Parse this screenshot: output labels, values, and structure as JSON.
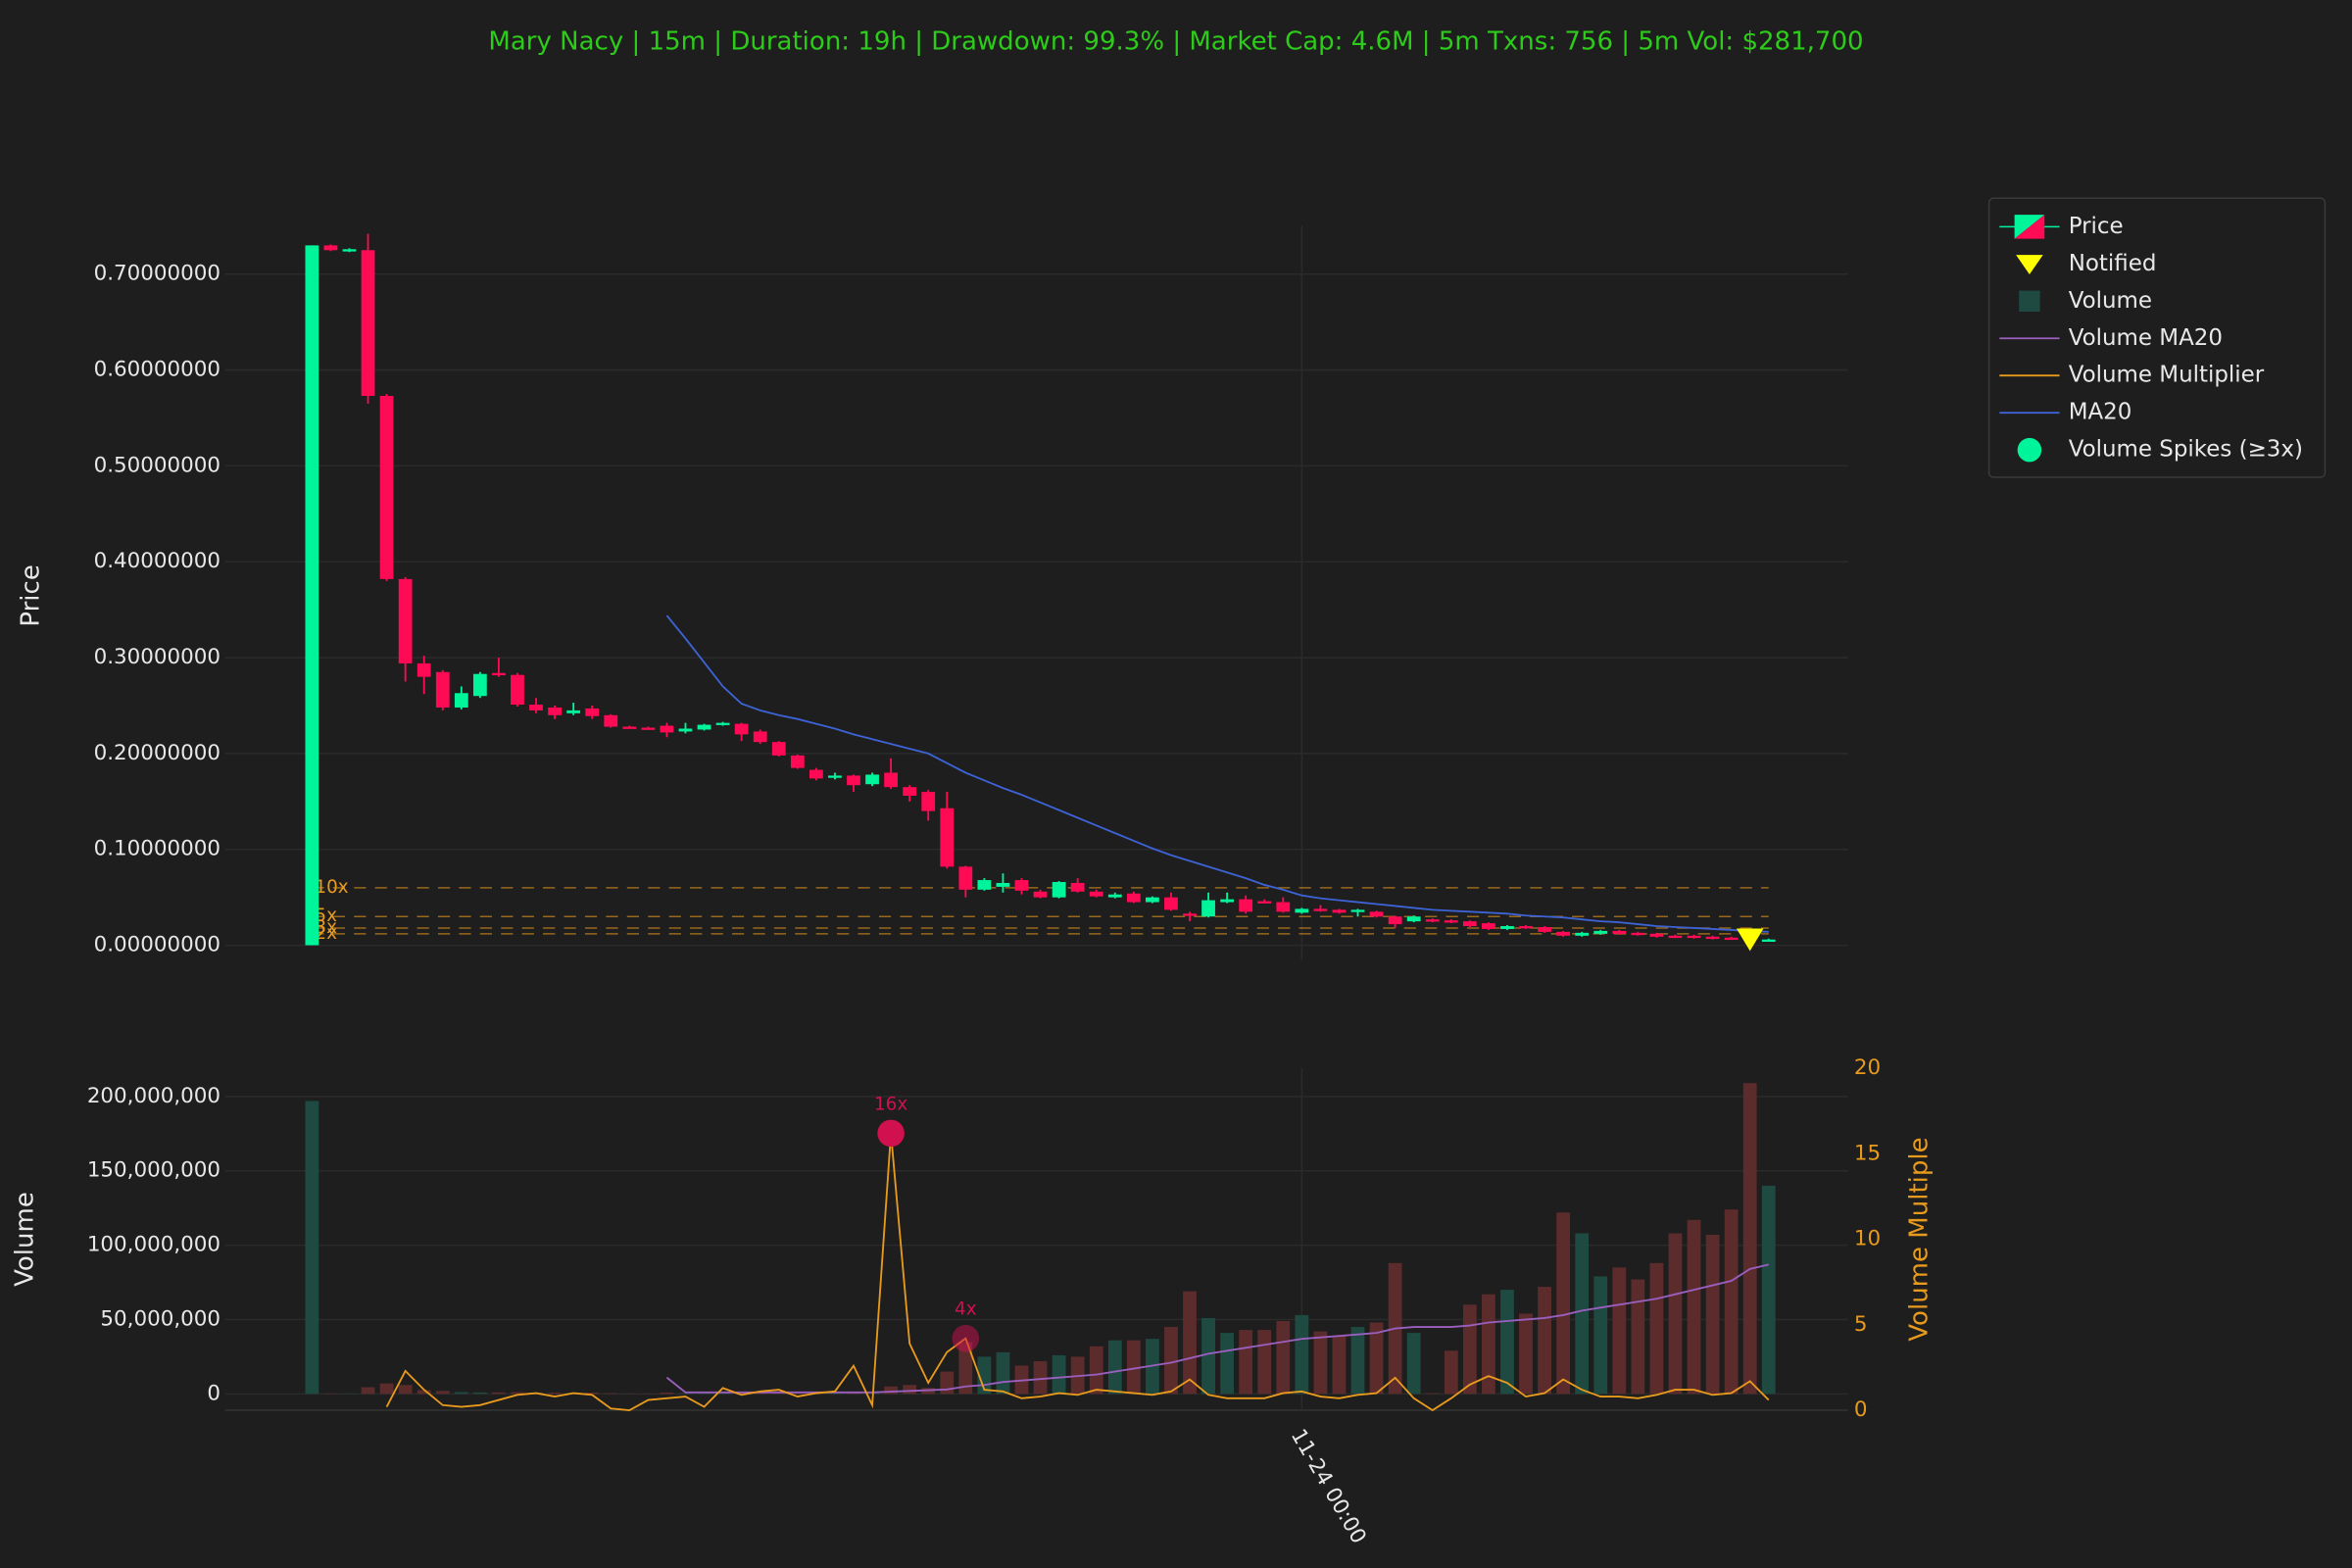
{
  "chart_data": [
    {
      "type": "candlestick",
      "title": "Mary Nacy | 15m | Duration: 19h | Drawdown: 99.3% | Market Cap: 4.6M | 5m Txns: 756 | 5m Vol: $281,700",
      "title_color": "#2ecc1a",
      "ylabel": "Price",
      "ylim": [
        -0.0156,
        0.751
      ],
      "yticks": [
        {
          "value": 0,
          "label": "0.00000000"
        },
        {
          "value": 0.1,
          "label": "0.10000000"
        },
        {
          "value": 0.2,
          "label": "0.20000000"
        },
        {
          "value": 0.3,
          "label": "0.30000000"
        },
        {
          "value": 0.4,
          "label": "0.40000000"
        },
        {
          "value": 0.5,
          "label": "0.50000000"
        },
        {
          "value": 0.6,
          "label": "0.60000000"
        },
        {
          "value": 0.7,
          "label": "0.70000000"
        }
      ],
      "grid": true,
      "series": [
        {
          "name": "Price",
          "type": "candlestick",
          "up_color": "#00f59b",
          "down_color": "#ff0a54",
          "open": [
            0.0001,
            0.73,
            0.724,
            0.725,
            0.573,
            0.382,
            0.294,
            0.285,
            0.248,
            0.26,
            0.284,
            0.282,
            0.251,
            0.248,
            0.242,
            0.247,
            0.24,
            0.228,
            0.227,
            0.229,
            0.223,
            0.225,
            0.23,
            0.231,
            0.223,
            0.212,
            0.198,
            0.183,
            0.175,
            0.177,
            0.168,
            0.18,
            0.165,
            0.16,
            0.143,
            0.082,
            0.058,
            0.061,
            0.068,
            0.056,
            0.05,
            0.065,
            0.056,
            0.05,
            0.054,
            0.045,
            0.05,
            0.033,
            0.03,
            0.045,
            0.048,
            0.046,
            0.045,
            0.034,
            0.038,
            0.037,
            0.035,
            0.035,
            0.03,
            0.025,
            0.027,
            0.026,
            0.025,
            0.023,
            0.017,
            0.02,
            0.019,
            0.014,
            0.01,
            0.012,
            0.015,
            0.013,
            0.012,
            0.01,
            0.01,
            0.009,
            0.008,
            0.008,
            0.005
          ],
          "high": [
            0.73,
            0.731,
            0.727,
            0.742,
            0.575,
            0.384,
            0.302,
            0.287,
            0.27,
            0.285,
            0.3,
            0.284,
            0.258,
            0.25,
            0.253,
            0.25,
            0.241,
            0.229,
            0.228,
            0.232,
            0.232,
            0.231,
            0.233,
            0.232,
            0.225,
            0.213,
            0.199,
            0.185,
            0.18,
            0.178,
            0.18,
            0.195,
            0.167,
            0.162,
            0.16,
            0.083,
            0.07,
            0.075,
            0.07,
            0.058,
            0.067,
            0.07,
            0.058,
            0.055,
            0.056,
            0.051,
            0.055,
            0.035,
            0.055,
            0.055,
            0.052,
            0.048,
            0.05,
            0.039,
            0.042,
            0.038,
            0.038,
            0.036,
            0.031,
            0.031,
            0.028,
            0.027,
            0.026,
            0.024,
            0.021,
            0.021,
            0.02,
            0.015,
            0.014,
            0.016,
            0.016,
            0.014,
            0.013,
            0.011,
            0.011,
            0.01,
            0.009,
            0.009,
            0.007
          ],
          "low": [
            0,
            0.724,
            0.723,
            0.565,
            0.38,
            0.275,
            0.262,
            0.245,
            0.246,
            0.258,
            0.28,
            0.249,
            0.242,
            0.236,
            0.24,
            0.236,
            0.227,
            0.226,
            0.225,
            0.217,
            0.221,
            0.224,
            0.229,
            0.213,
            0.21,
            0.197,
            0.184,
            0.172,
            0.173,
            0.16,
            0.166,
            0.163,
            0.15,
            0.13,
            0.08,
            0.05,
            0.057,
            0.055,
            0.053,
            0.049,
            0.049,
            0.055,
            0.05,
            0.049,
            0.044,
            0.044,
            0.036,
            0.025,
            0.029,
            0.044,
            0.033,
            0.044,
            0.034,
            0.033,
            0.035,
            0.033,
            0.03,
            0.029,
            0.018,
            0.024,
            0.024,
            0.023,
            0.019,
            0.016,
            0.016,
            0.017,
            0.013,
            0.009,
            0.009,
            0.011,
            0.011,
            0.01,
            0.008,
            0.008,
            0.007,
            0.006,
            0.006,
            0.005,
            0.004
          ],
          "close": [
            0.73,
            0.725,
            0.726,
            0.573,
            0.382,
            0.294,
            0.28,
            0.248,
            0.263,
            0.283,
            0.282,
            0.251,
            0.245,
            0.24,
            0.245,
            0.239,
            0.228,
            0.227,
            0.226,
            0.222,
            0.226,
            0.23,
            0.232,
            0.22,
            0.212,
            0.198,
            0.185,
            0.174,
            0.177,
            0.167,
            0.178,
            0.165,
            0.156,
            0.14,
            0.082,
            0.058,
            0.068,
            0.065,
            0.057,
            0.05,
            0.066,
            0.056,
            0.051,
            0.053,
            0.045,
            0.05,
            0.037,
            0.031,
            0.047,
            0.048,
            0.035,
            0.045,
            0.035,
            0.038,
            0.036,
            0.034,
            0.037,
            0.03,
            0.022,
            0.03,
            0.025,
            0.024,
            0.02,
            0.017,
            0.02,
            0.018,
            0.014,
            0.01,
            0.013,
            0.015,
            0.012,
            0.011,
            0.009,
            0.009,
            0.008,
            0.007,
            0.007,
            0.006,
            0.006
          ]
        },
        {
          "name": "MA20",
          "type": "line",
          "color": "#3d63d6",
          "values": [
            null,
            null,
            null,
            null,
            null,
            null,
            null,
            null,
            null,
            null,
            null,
            null,
            null,
            null,
            null,
            null,
            null,
            null,
            null,
            0.344,
            0.32,
            0.295,
            0.27,
            0.252,
            0.245,
            0.24,
            0.236,
            0.231,
            0.226,
            0.22,
            0.215,
            0.21,
            0.205,
            0.2,
            0.19,
            0.18,
            0.172,
            0.164,
            0.157,
            0.149,
            0.141,
            0.133,
            0.125,
            0.117,
            0.109,
            0.101,
            0.094,
            0.088,
            0.082,
            0.076,
            0.07,
            0.063,
            0.058,
            0.052,
            0.049,
            0.047,
            0.045,
            0.043,
            0.041,
            0.039,
            0.037,
            0.036,
            0.035,
            0.034,
            0.033,
            0.031,
            0.03,
            0.029,
            0.027,
            0.025,
            0.024,
            0.022,
            0.02,
            0.019,
            0.018,
            0.017,
            0.016,
            0.015,
            0.014
          ]
        }
      ],
      "notified": {
        "name": "Notified",
        "color": "#ffff00",
        "index": 77,
        "value": 0.005
      },
      "levels": [
        {
          "value": 0.06,
          "label": "10x"
        },
        {
          "value": 0.03,
          "label": "5x"
        },
        {
          "value": 0.018,
          "label": "3x"
        },
        {
          "value": 0.012,
          "label": "2x"
        }
      ],
      "level_color": "#e89a1c"
    },
    {
      "type": "bar",
      "ylabel": "Volume",
      "y2label": "Volume Multiple",
      "categories": [
        null,
        null,
        null,
        null,
        null,
        null,
        null,
        null,
        null,
        null,
        null,
        null,
        null,
        null,
        null,
        null,
        null,
        null,
        null,
        null,
        null,
        null,
        null,
        null,
        null,
        null,
        null,
        null,
        null,
        null,
        null,
        null,
        null,
        null,
        null,
        null,
        null,
        null,
        null,
        null,
        null,
        null,
        null,
        null,
        null,
        null,
        null,
        null,
        null,
        null,
        null,
        null,
        null,
        "11-24 00:00",
        null,
        null,
        null,
        null,
        null,
        null,
        null,
        null,
        null,
        null,
        null,
        null,
        null,
        null,
        null,
        null,
        null,
        null,
        null,
        null,
        null,
        null,
        null,
        null,
        null
      ],
      "ylim": [
        -11000000,
        219000000
      ],
      "yticks": [
        0,
        {
          "value": 50000000,
          "label": "50,000,000"
        },
        {
          "value": 100000000,
          "label": "100,000,000"
        },
        {
          "value": 150000000,
          "label": "150,000,000"
        },
        {
          "value": 200000000,
          "label": "200,000,000"
        }
      ],
      "y2lim": [
        0,
        20
      ],
      "y2ticks": [
        0,
        5,
        10,
        15,
        20
      ],
      "y2_color": "#e89a1c",
      "grid": true,
      "series": [
        {
          "name": "Volume",
          "type": "bar",
          "up_color": "#1f4a42",
          "down_color": "#5c2c2c",
          "values": [
            197000000,
            300000,
            200000,
            4500000,
            7000000,
            6000000,
            2500000,
            2000000,
            1200000,
            1000000,
            1000000,
            1200000,
            900000,
            800000,
            500000,
            900000,
            500000,
            200000,
            200000,
            900000,
            500000,
            600000,
            500000,
            700000,
            600000,
            500000,
            400000,
            600000,
            500000,
            800000,
            1000000,
            5000000,
            6000000,
            4000000,
            15000000,
            35000000,
            25000000,
            28000000,
            19000000,
            22000000,
            26000000,
            25000000,
            32000000,
            36000000,
            36000000,
            37000000,
            45000000,
            69000000,
            51000000,
            41000000,
            43000000,
            43000000,
            49000000,
            53000000,
            42000000,
            39000000,
            45000000,
            48000000,
            88000000,
            41000000,
            500000,
            29000000,
            60000000,
            67000000,
            70000000,
            54000000,
            72000000,
            122000000,
            108000000,
            79000000,
            85000000,
            77000000,
            88000000,
            108000000,
            117000000,
            107000000,
            124000000,
            209000000,
            140000000
          ]
        },
        {
          "name": "Volume MA20",
          "type": "line",
          "color": "#9b5fc0",
          "values": [
            null,
            null,
            null,
            null,
            null,
            null,
            null,
            null,
            null,
            null,
            null,
            null,
            null,
            null,
            null,
            null,
            null,
            null,
            null,
            11000000,
            1000000,
            1000000,
            1000000,
            1000000,
            1000000,
            1000000,
            1000000,
            1000000,
            1000000,
            1000000,
            1000000,
            1500000,
            2000000,
            2500000,
            3000000,
            5000000,
            6000000,
            8000000,
            9000000,
            10000000,
            11000000,
            12000000,
            13000000,
            15000000,
            17000000,
            19000000,
            21000000,
            24000000,
            27000000,
            29000000,
            31000000,
            33000000,
            35000000,
            37000000,
            38000000,
            39000000,
            40000000,
            41000000,
            44000000,
            45000000,
            45000000,
            45000000,
            46000000,
            48000000,
            49000000,
            50000000,
            51000000,
            53000000,
            56000000,
            58000000,
            60000000,
            62000000,
            64000000,
            67000000,
            70000000,
            73000000,
            76000000,
            84000000,
            87000000
          ]
        },
        {
          "name": "Volume Multiplier",
          "type": "line",
          "axis": "y2",
          "color": "#e89a1c",
          "values": [
            null,
            null,
            null,
            null,
            0.2,
            2.3,
            1.2,
            0.3,
            0.2,
            0.3,
            0.6,
            0.9,
            1.0,
            0.8,
            1.0,
            0.9,
            0.1,
            0.0,
            0.6,
            0.7,
            0.8,
            0.2,
            1.3,
            0.9,
            1.1,
            1.2,
            0.8,
            1.0,
            1.1,
            2.6,
            0.3,
            16.2,
            3.9,
            1.6,
            3.4,
            4.2,
            1.2,
            1.1,
            0.7,
            0.8,
            1.0,
            0.9,
            1.2,
            1.1,
            1.0,
            0.9,
            1.1,
            1.8,
            0.9,
            0.7,
            0.7,
            0.7,
            1.0,
            1.1,
            0.8,
            0.7,
            0.9,
            1.0,
            1.9,
            0.7,
            0.0,
            0.7,
            1.5,
            2.0,
            1.6,
            0.8,
            1.0,
            1.8,
            1.2,
            0.8,
            0.8,
            0.7,
            0.9,
            1.2,
            1.2,
            0.9,
            1.0,
            1.7,
            0.6
          ]
        }
      ],
      "spikes": {
        "name": "Volume Spikes (≥3x)",
        "color": "#d0104f",
        "legend_color": "#00f59b",
        "points": [
          {
            "index": 31,
            "label": "16x"
          },
          {
            "index": 35,
            "label": "4x"
          }
        ]
      }
    }
  ]
}
